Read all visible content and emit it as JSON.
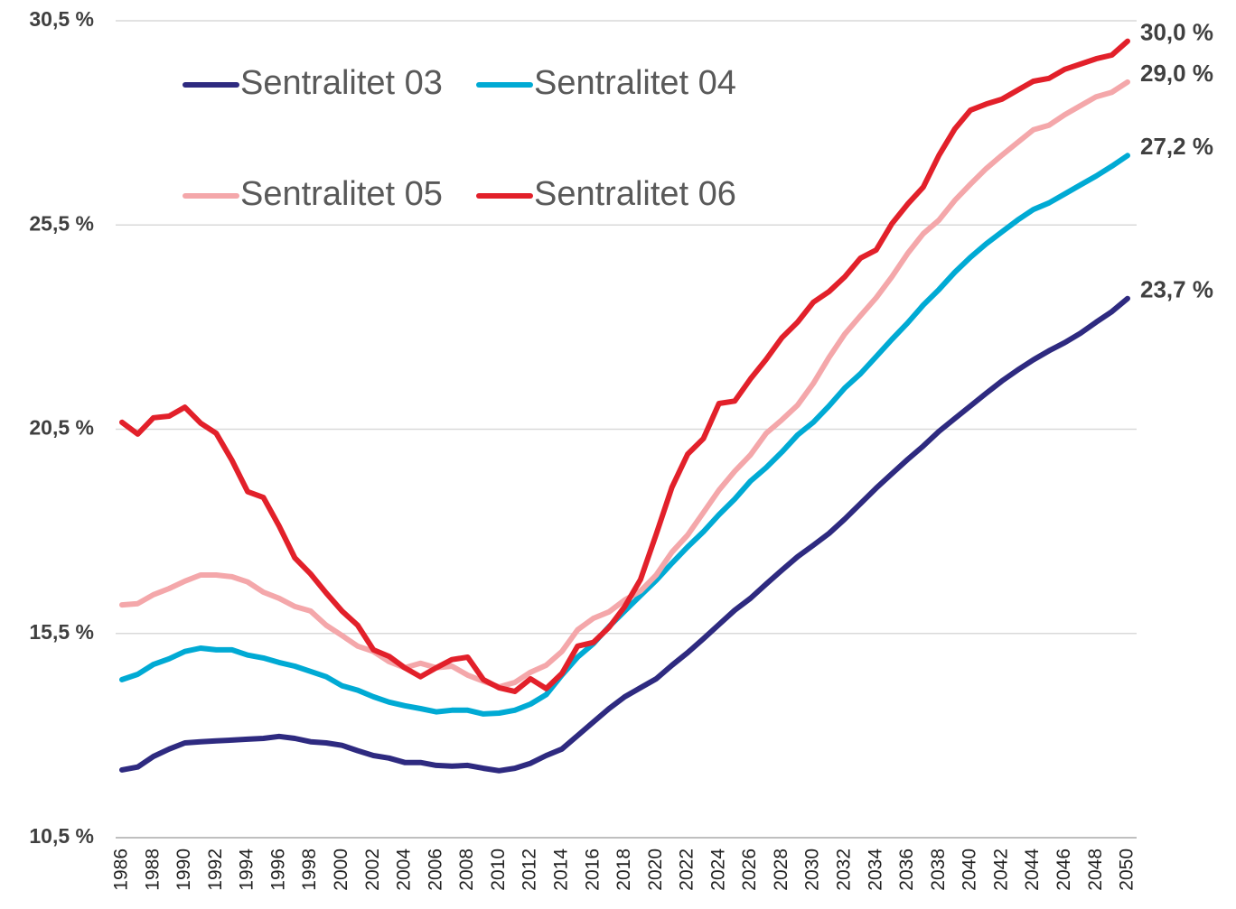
{
  "chart_data": {
    "type": "line",
    "x": [
      1986,
      1987,
      1988,
      1989,
      1990,
      1991,
      1992,
      1993,
      1994,
      1995,
      1996,
      1997,
      1998,
      1999,
      2000,
      2001,
      2002,
      2003,
      2004,
      2005,
      2006,
      2007,
      2008,
      2009,
      2010,
      2011,
      2012,
      2013,
      2014,
      2015,
      2016,
      2017,
      2018,
      2019,
      2020,
      2021,
      2022,
      2023,
      2024,
      2025,
      2026,
      2027,
      2028,
      2029,
      2030,
      2031,
      2032,
      2033,
      2034,
      2035,
      2036,
      2037,
      2038,
      2039,
      2040,
      2041,
      2042,
      2043,
      2044,
      2045,
      2046,
      2047,
      2048,
      2049,
      2050
    ],
    "xlim": [
      1986,
      2050
    ],
    "xticks": [
      1986,
      1988,
      1990,
      1992,
      1994,
      1996,
      1998,
      2000,
      2002,
      2004,
      2006,
      2008,
      2010,
      2012,
      2014,
      2016,
      2018,
      2020,
      2022,
      2024,
      2026,
      2028,
      2030,
      2032,
      2034,
      2036,
      2038,
      2040,
      2042,
      2044,
      2046,
      2048,
      2050
    ],
    "ylim": [
      10.5,
      30.5
    ],
    "yticks": [
      {
        "value": 10.5,
        "label": "10,5 %"
      },
      {
        "value": 15.5,
        "label": "15,5 %"
      },
      {
        "value": 20.5,
        "label": "20,5 %"
      },
      {
        "value": 25.5,
        "label": "25,5 %"
      },
      {
        "value": 30.5,
        "label": "30,5 %"
      }
    ],
    "grid": true,
    "legend": "upper left",
    "series": [
      {
        "name": "Sentralitet 03",
        "color": "#2e2a80",
        "values": [
          12.16,
          12.23,
          12.49,
          12.67,
          12.82,
          12.85,
          12.87,
          12.89,
          12.91,
          12.93,
          12.98,
          12.93,
          12.85,
          12.82,
          12.76,
          12.63,
          12.51,
          12.45,
          12.34,
          12.34,
          12.27,
          12.25,
          12.27,
          12.2,
          12.14,
          12.2,
          12.32,
          12.51,
          12.67,
          13.0,
          13.33,
          13.66,
          13.95,
          14.17,
          14.39,
          14.72,
          15.03,
          15.37,
          15.72,
          16.07,
          16.36,
          16.71,
          17.05,
          17.38,
          17.66,
          17.95,
          18.3,
          18.68,
          19.06,
          19.41,
          19.76,
          20.09,
          20.45,
          20.76,
          21.07,
          21.38,
          21.68,
          21.95,
          22.2,
          22.42,
          22.62,
          22.85,
          23.12,
          23.38,
          23.7
        ],
        "value_labels": [
          null,
          null,
          null,
          null,
          null,
          null,
          null,
          null,
          null,
          null,
          null,
          null,
          null,
          null,
          null,
          null,
          null,
          null,
          null,
          null,
          null,
          null,
          null,
          null,
          null,
          null,
          null,
          null,
          null,
          null,
          null,
          null,
          null,
          null,
          null,
          null,
          null,
          null,
          null,
          null,
          null,
          null,
          null,
          null,
          null,
          null,
          null,
          null,
          null,
          null,
          null,
          null,
          null,
          null,
          null,
          null,
          null,
          null,
          null,
          null,
          null,
          null,
          null,
          null,
          "23,7 %"
        ]
      },
      {
        "name": "Sentralitet 04",
        "color": "#00aad4",
        "values": [
          14.37,
          14.5,
          14.74,
          14.88,
          15.06,
          15.14,
          15.1,
          15.1,
          14.97,
          14.9,
          14.79,
          14.7,
          14.57,
          14.44,
          14.22,
          14.11,
          13.95,
          13.82,
          13.73,
          13.66,
          13.58,
          13.62,
          13.62,
          13.53,
          13.55,
          13.62,
          13.77,
          14.0,
          14.48,
          14.92,
          15.25,
          15.67,
          16.05,
          16.43,
          16.8,
          17.22,
          17.62,
          17.99,
          18.41,
          18.79,
          19.23,
          19.56,
          19.94,
          20.36,
          20.67,
          21.07,
          21.51,
          21.86,
          22.28,
          22.7,
          23.1,
          23.54,
          23.92,
          24.34,
          24.71,
          25.04,
          25.33,
          25.62,
          25.88,
          26.04,
          26.26,
          26.48,
          26.7,
          26.94,
          27.2
        ],
        "value_labels": [
          null,
          null,
          null,
          null,
          null,
          null,
          null,
          null,
          null,
          null,
          null,
          null,
          null,
          null,
          null,
          null,
          null,
          null,
          null,
          null,
          null,
          null,
          null,
          null,
          null,
          null,
          null,
          null,
          null,
          null,
          null,
          null,
          null,
          null,
          null,
          null,
          null,
          null,
          null,
          null,
          null,
          null,
          null,
          null,
          null,
          null,
          null,
          null,
          null,
          null,
          null,
          null,
          null,
          null,
          null,
          null,
          null,
          null,
          null,
          null,
          null,
          null,
          null,
          null,
          "27,2 %"
        ]
      },
      {
        "name": "Sentralitet 05",
        "color": "#f4a7aa",
        "values": [
          16.2,
          16.23,
          16.45,
          16.6,
          16.78,
          16.93,
          16.93,
          16.89,
          16.76,
          16.51,
          16.36,
          16.16,
          16.05,
          15.7,
          15.45,
          15.19,
          15.06,
          14.81,
          14.66,
          14.77,
          14.66,
          14.7,
          14.48,
          14.33,
          14.19,
          14.3,
          14.55,
          14.72,
          15.06,
          15.59,
          15.87,
          16.03,
          16.32,
          16.54,
          16.93,
          17.49,
          17.91,
          18.46,
          19.01,
          19.47,
          19.87,
          20.4,
          20.73,
          21.09,
          21.62,
          22.26,
          22.83,
          23.28,
          23.72,
          24.23,
          24.8,
          25.29,
          25.62,
          26.1,
          26.5,
          26.88,
          27.21,
          27.52,
          27.83,
          27.94,
          28.2,
          28.42,
          28.64,
          28.75,
          29.0
        ],
        "value_labels": [
          null,
          null,
          null,
          null,
          null,
          null,
          null,
          null,
          null,
          null,
          null,
          null,
          null,
          null,
          null,
          null,
          null,
          null,
          null,
          null,
          null,
          null,
          null,
          null,
          null,
          null,
          null,
          null,
          null,
          null,
          null,
          null,
          null,
          null,
          null,
          null,
          null,
          null,
          null,
          null,
          null,
          null,
          null,
          null,
          null,
          null,
          null,
          null,
          null,
          null,
          null,
          null,
          null,
          null,
          null,
          null,
          null,
          null,
          null,
          null,
          null,
          null,
          null,
          null,
          "29,0 %"
        ]
      },
      {
        "name": "Sentralitet 06",
        "color": "#e2202a",
        "values": [
          20.67,
          20.38,
          20.78,
          20.82,
          21.04,
          20.65,
          20.4,
          19.74,
          18.97,
          18.83,
          18.13,
          17.35,
          16.96,
          16.49,
          16.05,
          15.7,
          15.1,
          14.94,
          14.66,
          14.44,
          14.66,
          14.86,
          14.92,
          14.37,
          14.17,
          14.08,
          14.39,
          14.15,
          14.52,
          15.19,
          15.28,
          15.65,
          16.16,
          16.82,
          17.93,
          19.08,
          19.89,
          20.27,
          21.13,
          21.19,
          21.73,
          22.21,
          22.74,
          23.12,
          23.61,
          23.87,
          24.23,
          24.69,
          24.89,
          25.53,
          26.01,
          26.43,
          27.21,
          27.85,
          28.31,
          28.46,
          28.58,
          28.8,
          29.02,
          29.09,
          29.31,
          29.44,
          29.57,
          29.66,
          30.0
        ],
        "value_labels": [
          null,
          null,
          null,
          null,
          null,
          null,
          null,
          null,
          null,
          null,
          null,
          null,
          null,
          null,
          null,
          null,
          null,
          null,
          null,
          null,
          null,
          null,
          null,
          null,
          null,
          null,
          null,
          null,
          null,
          null,
          null,
          null,
          null,
          null,
          null,
          null,
          null,
          null,
          null,
          null,
          null,
          null,
          null,
          null,
          null,
          null,
          null,
          null,
          null,
          null,
          null,
          null,
          null,
          null,
          null,
          null,
          null,
          null,
          null,
          null,
          null,
          null,
          null,
          null,
          "30,0 %"
        ]
      }
    ]
  }
}
